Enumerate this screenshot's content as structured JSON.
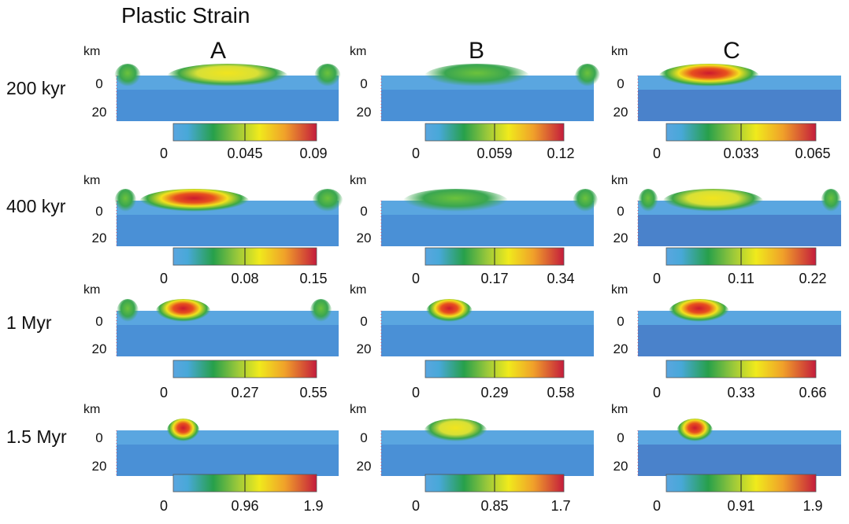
{
  "title": "Plastic Strain",
  "unit": "km",
  "depth_ticks": [
    "0",
    "20"
  ],
  "columns": [
    "A",
    "B",
    "C"
  ],
  "rows": [
    {
      "time": "200 kyr",
      "panels": [
        {
          "colorbar": [
            "0",
            "0.045",
            "0.09"
          ]
        },
        {
          "colorbar": [
            "0",
            "0.059",
            "0.12"
          ]
        },
        {
          "colorbar": [
            "0",
            "0.033",
            "0.065"
          ]
        }
      ]
    },
    {
      "time": "400 kyr",
      "panels": [
        {
          "colorbar": [
            "0",
            "0.08",
            "0.15"
          ]
        },
        {
          "colorbar": [
            "0",
            "0.17",
            "0.34"
          ]
        },
        {
          "colorbar": [
            "0",
            "0.11",
            "0.22"
          ]
        }
      ]
    },
    {
      "time": "1 Myr",
      "panels": [
        {
          "colorbar": [
            "0",
            "0.27",
            "0.55"
          ]
        },
        {
          "colorbar": [
            "0",
            "0.29",
            "0.58"
          ]
        },
        {
          "colorbar": [
            "0",
            "0.33",
            "0.66"
          ]
        }
      ]
    },
    {
      "time": "1.5 Myr",
      "panels": [
        {
          "colorbar": [
            "0",
            "0.96",
            "1.9"
          ]
        },
        {
          "colorbar": [
            "0",
            "0.85",
            "1.7"
          ]
        },
        {
          "colorbar": [
            "0",
            "0.91",
            "1.9"
          ]
        }
      ]
    }
  ],
  "colors": {
    "crust_upper": "#4f9ad8",
    "crust_lower": "#4a86cf",
    "colormap": [
      "#5aa6e0",
      "#1f9a3c",
      "#f1ec1a",
      "#c81e3a"
    ]
  }
}
